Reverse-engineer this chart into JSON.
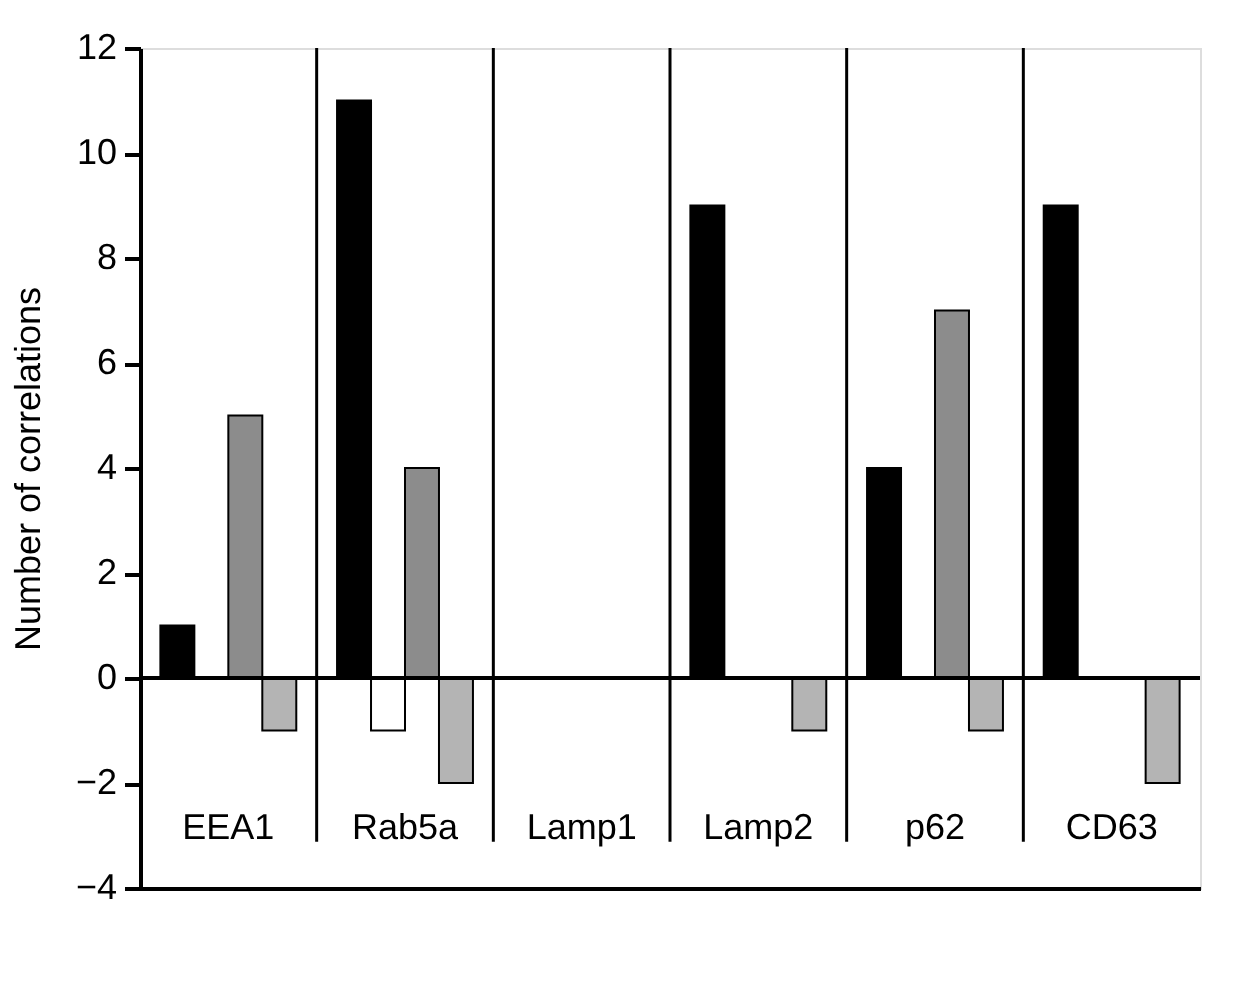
{
  "chart_data": {
    "type": "bar",
    "ylabel": "Number of correlations",
    "categories": [
      "EEA1",
      "Rab5a",
      "Lamp1",
      "Lamp2",
      "p62",
      "CD63"
    ],
    "series": [
      {
        "color": "#000000",
        "values": [
          1,
          11,
          0,
          9,
          4,
          9
        ]
      },
      {
        "color": "#ffffff",
        "values": [
          0,
          -1,
          0,
          0,
          0,
          0
        ]
      },
      {
        "color": "#8c8c8c",
        "values": [
          5,
          4,
          0,
          0,
          7,
          0
        ]
      },
      {
        "color": "#b4b4b4",
        "values": [
          -1,
          -2,
          0,
          -1,
          -1,
          -2
        ]
      }
    ],
    "ylim": [
      -4,
      12
    ],
    "yticks": [
      -4,
      -2,
      0,
      2,
      4,
      6,
      8,
      10,
      12
    ],
    "ref_lines": [
      {
        "axis": "y",
        "value": 0
      }
    ],
    "grid": false
  }
}
